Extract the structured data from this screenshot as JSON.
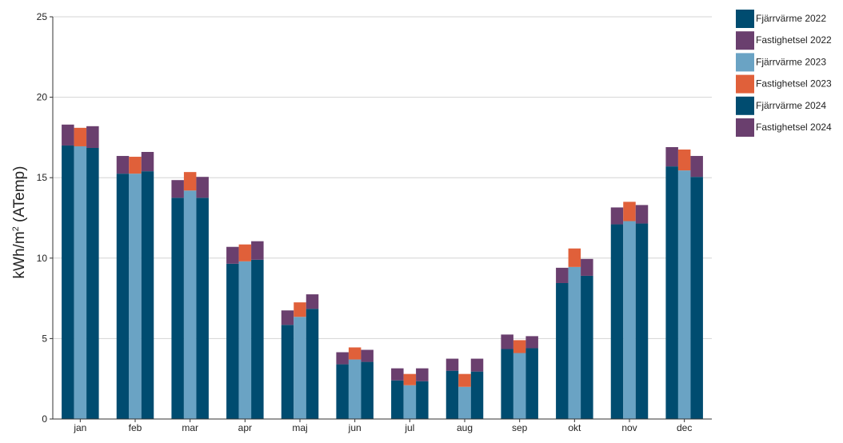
{
  "chart_data": {
    "type": "bar",
    "stacked": true,
    "grouped": true,
    "categories": [
      "jan",
      "feb",
      "mar",
      "apr",
      "maj",
      "jun",
      "jul",
      "aug",
      "sep",
      "okt",
      "nov",
      "dec"
    ],
    "ylabel_base": "kWh/m",
    "ylabel_sup": "2",
    "ylabel_suffix": " (ATemp)",
    "xlabel": "",
    "ylim": [
      0,
      25
    ],
    "yticks": [
      "0",
      "5",
      "10",
      "15",
      "20",
      "25"
    ],
    "grid": true,
    "legend_position": "right",
    "groups": [
      {
        "year": "2022",
        "series": [
          {
            "name": "Fjärrvärme 2022",
            "color": "#004c70",
            "values": [
              17.0,
              15.25,
              13.75,
              9.65,
              5.85,
              3.4,
              2.4,
              3.0,
              4.35,
              8.45,
              12.1,
              15.7
            ]
          },
          {
            "name": "Fastighetsel 2022",
            "color": "#6a3f6e",
            "values": [
              1.3,
              1.1,
              1.1,
              1.05,
              0.9,
              0.75,
              0.75,
              0.75,
              0.9,
              0.95,
              1.05,
              1.2
            ]
          }
        ]
      },
      {
        "year": "2023",
        "series": [
          {
            "name": "Fjärrvärme 2023",
            "color": "#6aa3c4",
            "values": [
              16.95,
              15.25,
              14.2,
              9.8,
              6.35,
              3.7,
              2.1,
              2.0,
              4.1,
              9.45,
              12.3,
              15.45
            ]
          },
          {
            "name": "Fastighetsel 2023",
            "color": "#e0603a",
            "values": [
              1.15,
              1.05,
              1.15,
              1.05,
              0.9,
              0.75,
              0.7,
              0.8,
              0.8,
              1.15,
              1.2,
              1.3
            ]
          }
        ]
      },
      {
        "year": "2024",
        "series": [
          {
            "name": "Fjärrvärme 2024",
            "color": "#004c70",
            "values": [
              16.85,
              15.4,
              13.75,
              9.9,
              6.85,
              3.55,
              2.35,
              2.95,
              4.4,
              8.9,
              12.15,
              15.05
            ]
          },
          {
            "name": "Fastighetsel 2024",
            "color": "#6a3f6e",
            "values": [
              1.35,
              1.2,
              1.3,
              1.15,
              0.9,
              0.75,
              0.8,
              0.8,
              0.75,
              1.05,
              1.15,
              1.3
            ]
          }
        ]
      }
    ]
  }
}
